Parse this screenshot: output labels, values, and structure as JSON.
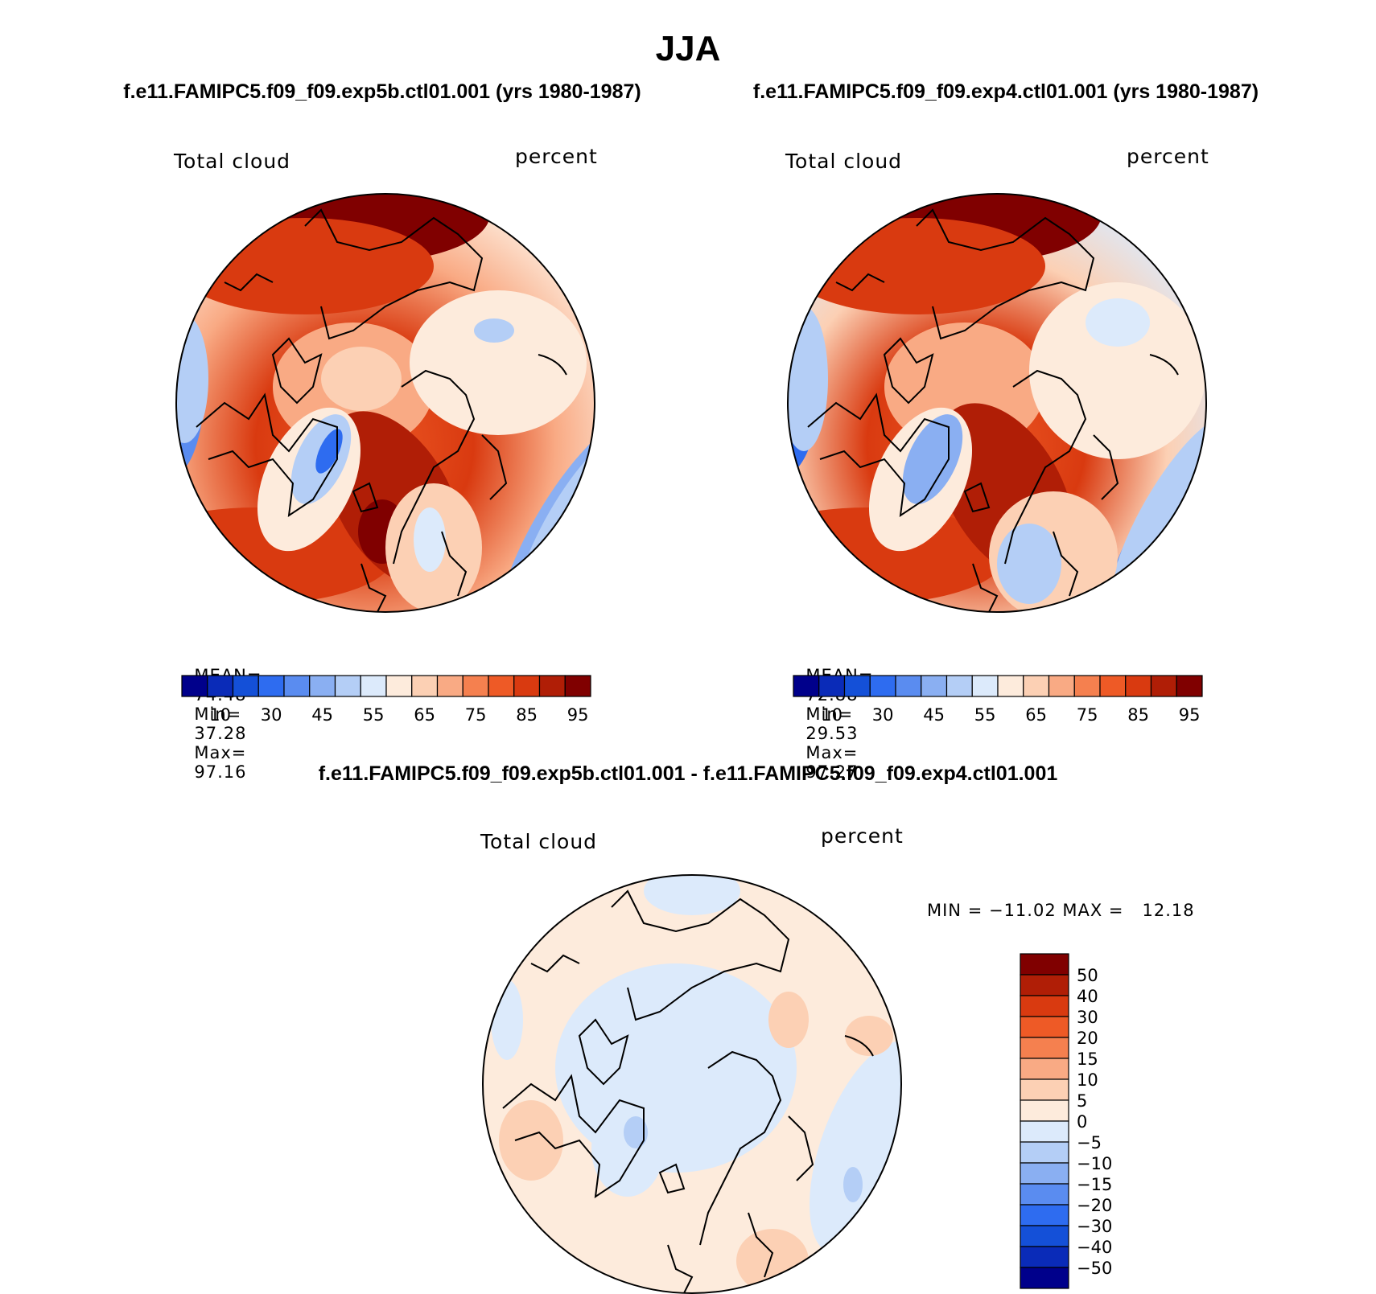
{
  "page": {
    "season": "JJA",
    "diff_title": "f.e11.FAMIPC5.f09_f09.exp5b.ctl01.001 - f.e11.FAMIPC5.f09_f09.exp4.ctl01.001"
  },
  "panels": [
    {
      "title": "f.e11.FAMIPC5.f09_f09.exp5b.ctl01.001 (yrs 1980-1987)",
      "left_label": "Total cloud",
      "right_label": "percent",
      "stats": {
        "mean_label": "MEAN=",
        "mean": "74.48",
        "min_label": "Min=",
        "min": "37.28",
        "max_label": "Max=",
        "max": "97.16"
      }
    },
    {
      "title": "f.e11.FAMIPC5.f09_f09.exp4.ctl01.001 (yrs 1980-1987)",
      "left_label": "Total cloud",
      "right_label": "percent",
      "stats": {
        "mean_label": "MEAN=",
        "mean": "72.88",
        "min_label": "Min=",
        "min": "29.53",
        "max_label": "Max=",
        "max": "97.27"
      }
    },
    {
      "left_label": "Total cloud",
      "right_label": "percent",
      "stats_text": "MIN = −11.02 MAX =   12.18"
    }
  ],
  "colorbar_abs": {
    "colors": [
      "#00008B",
      "#0A2BB8",
      "#1450D8",
      "#2E6CF0",
      "#5A8CF0",
      "#8AAFF2",
      "#B4CEF6",
      "#DCEAFB",
      "#FDEBDC",
      "#FCD0B4",
      "#F9AA84",
      "#F5804F",
      "#EE5A26",
      "#D93A10",
      "#B01E06",
      "#800000"
    ],
    "labels": [
      "10",
      "30",
      "45",
      "55",
      "65",
      "75",
      "85",
      "95"
    ]
  },
  "colorbar_diff": {
    "colors": [
      "#800000",
      "#B01E06",
      "#D93A10",
      "#EE5A26",
      "#F5804F",
      "#F9AA84",
      "#FCD0B4",
      "#FDEBDC",
      "#DCEAFB",
      "#B4CEF6",
      "#8AAFF2",
      "#5A8CF0",
      "#2E6CF0",
      "#1450D8",
      "#0A2BB8",
      "#00008B"
    ],
    "labels": [
      "50",
      "40",
      "30",
      "20",
      "15",
      "10",
      "5",
      "0",
      "−5",
      "−10",
      "−15",
      "−20",
      "−30",
      "−40",
      "−50"
    ]
  }
}
